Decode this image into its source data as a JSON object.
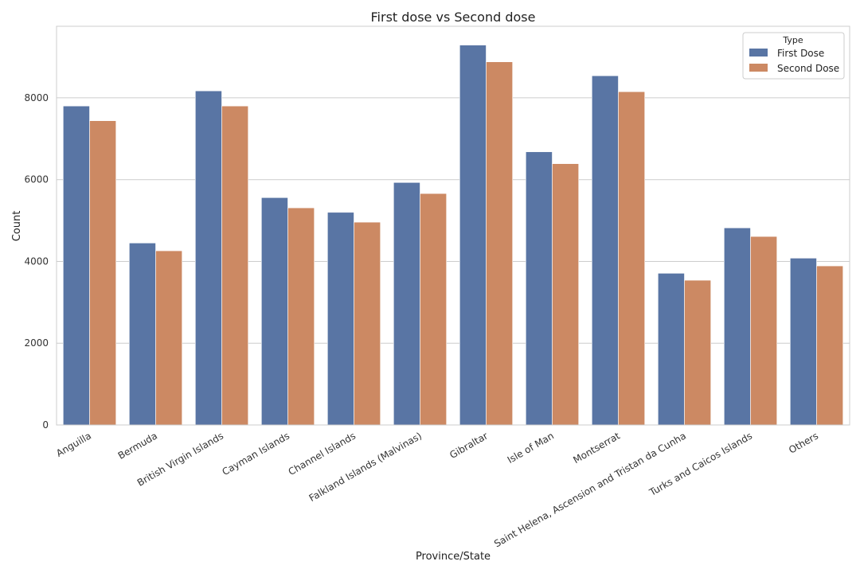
{
  "chart_data": {
    "type": "bar",
    "title": "First dose vs Second dose",
    "xlabel": "Province/State",
    "ylabel": "Count",
    "ylim": [
      0,
      9750
    ],
    "yticks": [
      0,
      2000,
      4000,
      6000,
      8000
    ],
    "grid": true,
    "legend": {
      "title": "Type",
      "position": "top-right"
    },
    "categories": [
      "Anguilla",
      "Bermuda",
      "British Virgin Islands",
      "Cayman Islands",
      "Channel Islands",
      "Falkland Islands (Malvinas)",
      "Gibraltar",
      "Isle of Man",
      "Montserrat",
      "Saint Helena, Ascension and Tristan da Cunha",
      "Turks and Caicos Islands",
      "Others"
    ],
    "series": [
      {
        "name": "First Dose",
        "color": "#5975a4",
        "values": [
          7800,
          4450,
          8170,
          5560,
          5200,
          5930,
          9290,
          6680,
          8540,
          3710,
          4820,
          4080
        ]
      },
      {
        "name": "Second Dose",
        "color": "#cc8963",
        "values": [
          7440,
          4260,
          7800,
          5310,
          4960,
          5660,
          8880,
          6390,
          8150,
          3540,
          4610,
          3890
        ]
      }
    ]
  }
}
